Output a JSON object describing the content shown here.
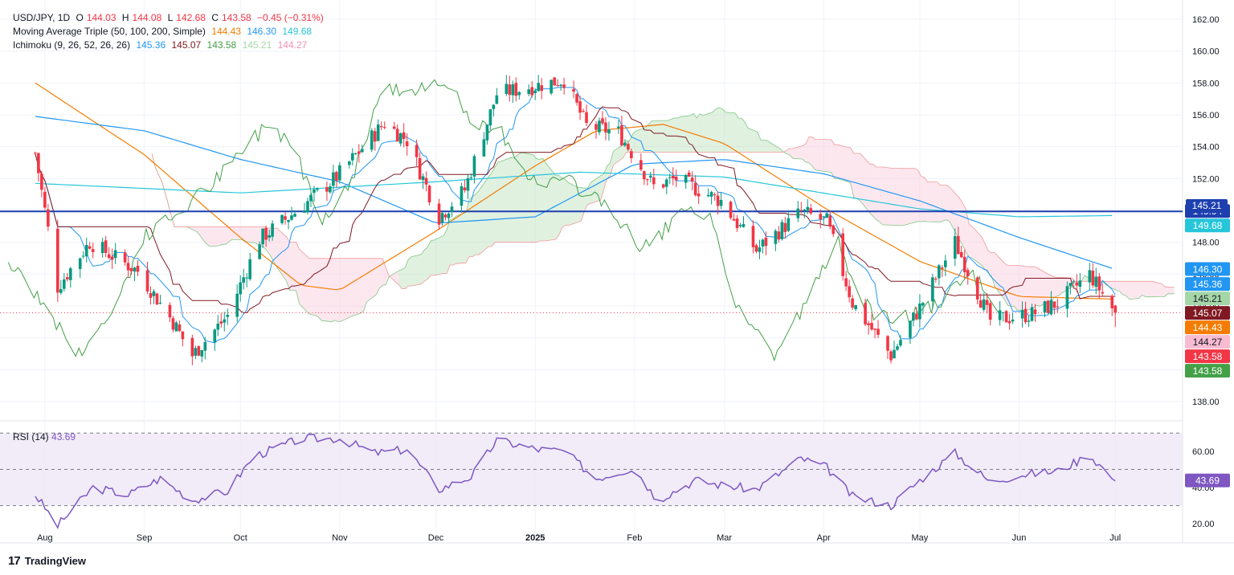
{
  "header": {
    "symbol": "USD/JPY, 1D",
    "ohlc": {
      "o_label": "O",
      "o": "144.03",
      "h_label": "H",
      "h": "144.08",
      "l_label": "L",
      "l": "142.68",
      "c_label": "C",
      "c": "143.58",
      "change": "−0.45 (−0.31%)"
    },
    "ma_label": "Moving Average Triple (50, 100, 200, Simple)",
    "ma_values": {
      "ma50": "144.43",
      "ma100": "146.30",
      "ma200": "149.68"
    },
    "ichimoku_label": "Ichimoku (9, 26, 52, 26, 26)",
    "ichimoku_values": {
      "conversion": "145.36",
      "base": "145.07",
      "lagging": "143.58",
      "spanA": "145.21",
      "spanB": "144.27"
    },
    "rsi_label": "RSI (14)",
    "rsi_value": "43.69"
  },
  "branding": {
    "logo_text": "TradingView",
    "logo_mark": "17"
  },
  "colors": {
    "up": "#089981",
    "down": "#f23645",
    "ma50": "#f57c00",
    "ma100": "#2196f3",
    "ma200": "#26c6da",
    "conversion": "#2196f3",
    "base": "#801922",
    "lagging": "#43a047",
    "cloud_bull": "#a5d6a7",
    "cloud_bear": "#f8bbd0",
    "hline": "#1e40af",
    "rsi": "#7e57c2",
    "rsi_band": "#ede7f6"
  },
  "chart_data": [
    {
      "type": "line",
      "title": "USD/JPY, 1D",
      "y_axis_ticks": [
        "162.00",
        "160.00",
        "158.00",
        "156.00",
        "154.00",
        "152.00",
        "150.00",
        "148.00",
        "146.00",
        "144.00",
        "142.00",
        "140.00",
        "138.00"
      ],
      "ylim": [
        137,
        162.5
      ],
      "x_axis_labels": [
        "Aug",
        "Sep",
        "Oct",
        "Nov",
        "Dec",
        "2025",
        "Feb",
        "Mar",
        "Apr",
        "May",
        "Jun",
        "Jul"
      ],
      "horizontal_line": 149.94,
      "last_close": 143.58,
      "price_path_keypoints": [
        {
          "x": "Jul 29",
          "y": 153.6
        },
        {
          "x": "Aug 5",
          "y": 145.2
        },
        {
          "x": "Aug 15",
          "y": 148.0
        },
        {
          "x": "Aug 30",
          "y": 146.2
        },
        {
          "x": "Sep 10",
          "y": 143.0
        },
        {
          "x": "Sep 16",
          "y": 140.9
        },
        {
          "x": "Sep 27",
          "y": 143.4
        },
        {
          "x": "Oct 7",
          "y": 148.2
        },
        {
          "x": "Oct 20",
          "y": 150.2
        },
        {
          "x": "Oct 31",
          "y": 152.1
        },
        {
          "x": "Nov 15",
          "y": 155.5
        },
        {
          "x": "Nov 22",
          "y": 154.4
        },
        {
          "x": "Dec 2",
          "y": 149.6
        },
        {
          "x": "Dec 10",
          "y": 151.3
        },
        {
          "x": "Dec 20",
          "y": 157.3
        },
        {
          "x": "Jan 10",
          "y": 158.2
        },
        {
          "x": "Jan 17",
          "y": 155.3
        },
        {
          "x": "Jan 27",
          "y": 154.9
        },
        {
          "x": "Feb 7",
          "y": 151.5
        },
        {
          "x": "Feb 14",
          "y": 152.0
        },
        {
          "x": "Feb 28",
          "y": 150.6
        },
        {
          "x": "Mar 11",
          "y": 147.5
        },
        {
          "x": "Mar 25",
          "y": 149.9
        },
        {
          "x": "Apr 2",
          "y": 149.3
        },
        {
          "x": "Apr 10",
          "y": 144.2
        },
        {
          "x": "Apr 22",
          "y": 140.9
        },
        {
          "x": "May 1",
          "y": 143.9
        },
        {
          "x": "May 12",
          "y": 148.0
        },
        {
          "x": "May 23",
          "y": 143.1
        },
        {
          "x": "Jun 5",
          "y": 143.5
        },
        {
          "x": "Jun 13",
          "y": 144.2
        },
        {
          "x": "Jun 23",
          "y": 146.0
        },
        {
          "x": "Jul 1",
          "y": 143.58
        }
      ],
      "series": [
        {
          "name": "MA 50",
          "values": [
            {
              "x": "Jul 29",
              "y": 158.0
            },
            {
              "x": "Sep 1",
              "y": 153.5
            },
            {
              "x": "Oct 1",
              "y": 148.3
            },
            {
              "x": "Oct 20",
              "y": 145.3
            },
            {
              "x": "Nov 1",
              "y": 145.0
            },
            {
              "x": "Dec 1",
              "y": 148.7
            },
            {
              "x": "Jan 1",
              "y": 152.8
            },
            {
              "x": "Jan 20",
              "y": 155.0
            },
            {
              "x": "Feb 10",
              "y": 155.4
            },
            {
              "x": "Mar 1",
              "y": 154.2
            },
            {
              "x": "Apr 1",
              "y": 150.2
            },
            {
              "x": "May 1",
              "y": 146.8
            },
            {
              "x": "Jun 1",
              "y": 144.6
            },
            {
              "x": "Jul 1",
              "y": 144.43
            }
          ]
        },
        {
          "name": "MA 100",
          "values": [
            {
              "x": "Jul 29",
              "y": 155.9
            },
            {
              "x": "Sep 1",
              "y": 155.0
            },
            {
              "x": "Oct 1",
              "y": 153.2
            },
            {
              "x": "Nov 1",
              "y": 151.8
            },
            {
              "x": "Dec 1",
              "y": 149.2
            },
            {
              "x": "Jan 1",
              "y": 149.6
            },
            {
              "x": "Feb 1",
              "y": 152.9
            },
            {
              "x": "Mar 1",
              "y": 153.2
            },
            {
              "x": "Apr 1",
              "y": 152.3
            },
            {
              "x": "May 1",
              "y": 150.6
            },
            {
              "x": "Jun 1",
              "y": 148.3
            },
            {
              "x": "Jul 1",
              "y": 146.3
            }
          ]
        },
        {
          "name": "MA 200",
          "values": [
            {
              "x": "Jul 29",
              "y": 151.7
            },
            {
              "x": "Oct 1",
              "y": 151.1
            },
            {
              "x": "Dec 1",
              "y": 151.8
            },
            {
              "x": "Jan 15",
              "y": 152.4
            },
            {
              "x": "Mar 1",
              "y": 152.1
            },
            {
              "x": "May 1",
              "y": 150.1
            },
            {
              "x": "Jun 1",
              "y": 149.6
            },
            {
              "x": "Jul 1",
              "y": 149.68
            }
          ]
        }
      ],
      "current_values": {
        "ma50": 144.43,
        "ma100": 146.3,
        "ma200": 149.68,
        "conversion": 145.36,
        "base": 145.07,
        "lagging": 143.58,
        "spanA": 145.21,
        "spanB": 144.27
      }
    },
    {
      "type": "line",
      "title": "RSI (14)",
      "y_axis_ticks": [
        "60.00",
        "40.00",
        "20.00"
      ],
      "ylim": [
        13,
        75
      ],
      "bands": [
        30,
        50,
        70
      ],
      "values": [
        {
          "x": "Jul 29",
          "y": 36
        },
        {
          "x": "Aug 5",
          "y": 19
        },
        {
          "x": "Aug 16",
          "y": 40
        },
        {
          "x": "Aug 27",
          "y": 36
        },
        {
          "x": "Sep 6",
          "y": 45
        },
        {
          "x": "Sep 16",
          "y": 33
        },
        {
          "x": "Sep 27",
          "y": 38
        },
        {
          "x": "Oct 5",
          "y": 57
        },
        {
          "x": "Oct 20",
          "y": 67
        },
        {
          "x": "Nov 1",
          "y": 67
        },
        {
          "x": "Nov 12",
          "y": 59
        },
        {
          "x": "Nov 22",
          "y": 61
        },
        {
          "x": "Dec 2",
          "y": 39
        },
        {
          "x": "Dec 12",
          "y": 46
        },
        {
          "x": "Dec 20",
          "y": 66
        },
        {
          "x": "Jan 2",
          "y": 61
        },
        {
          "x": "Jan 10",
          "y": 60
        },
        {
          "x": "Jan 20",
          "y": 45
        },
        {
          "x": "Feb 1",
          "y": 51
        },
        {
          "x": "Feb 8",
          "y": 33
        },
        {
          "x": "Feb 20",
          "y": 44
        },
        {
          "x": "Mar 1",
          "y": 41
        },
        {
          "x": "Mar 11",
          "y": 39
        },
        {
          "x": "Mar 25",
          "y": 56
        },
        {
          "x": "Apr 2",
          "y": 51
        },
        {
          "x": "Apr 10",
          "y": 35
        },
        {
          "x": "Apr 22",
          "y": 30
        },
        {
          "x": "May 1",
          "y": 44
        },
        {
          "x": "May 12",
          "y": 59
        },
        {
          "x": "May 23",
          "y": 43
        },
        {
          "x": "Jun 1",
          "y": 47
        },
        {
          "x": "Jun 13",
          "y": 49
        },
        {
          "x": "Jun 23",
          "y": 58
        },
        {
          "x": "Jul 1",
          "y": 43.69
        }
      ]
    }
  ]
}
